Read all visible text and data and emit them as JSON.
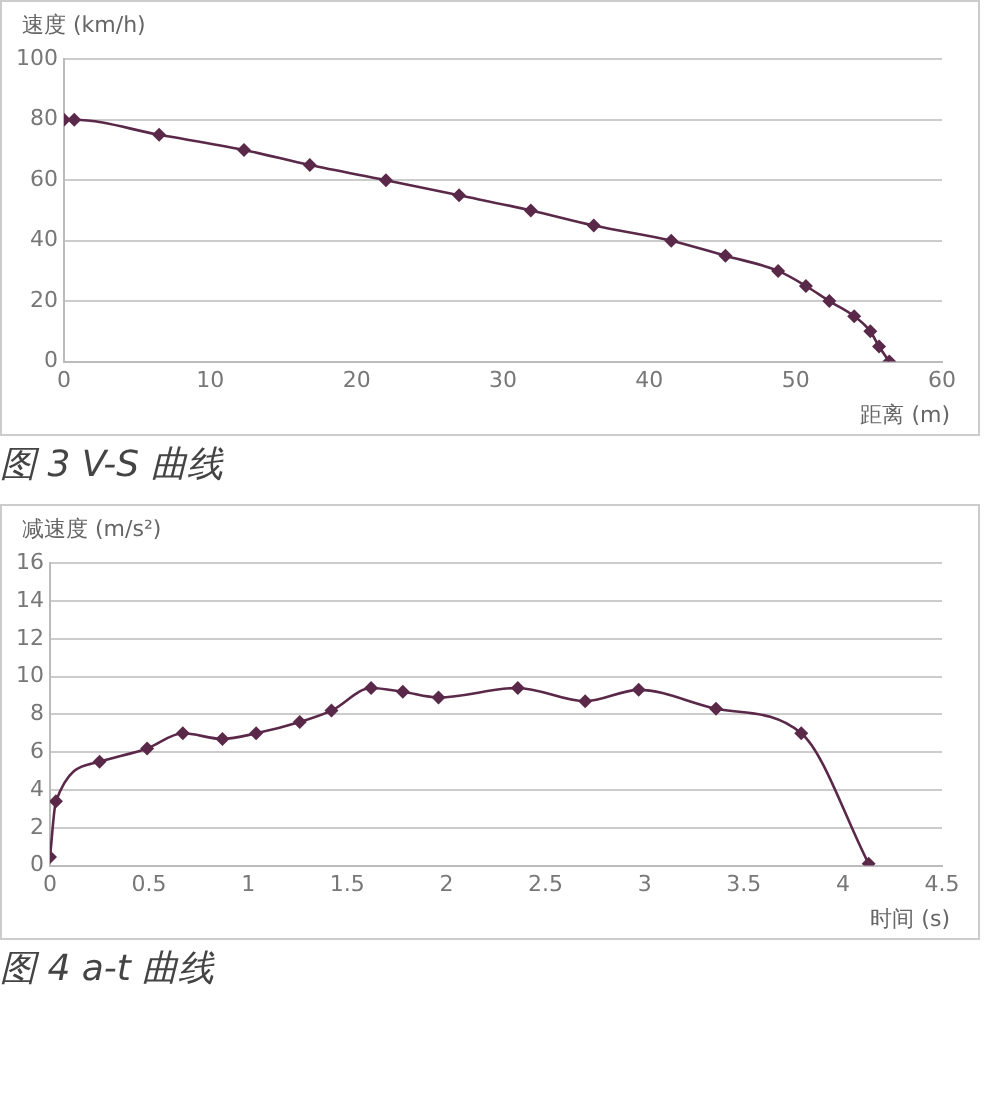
{
  "chart_data": [
    {
      "type": "line",
      "title": "图 3 V-S 曲线",
      "xlabel": "距离 (m)",
      "ylabel": "速度 (km/h)",
      "series": [
        {
          "color": "#5a2848",
          "x": [
            0,
            0.7,
            6.5,
            12.3,
            16.8,
            22,
            27,
            31.9,
            36.2,
            41.5,
            45.2,
            48.8,
            50.7,
            52.3,
            54,
            55.1,
            55.7,
            56.4
          ],
          "values": [
            80,
            80,
            75,
            70,
            65,
            60,
            55,
            50,
            45,
            40,
            35,
            30,
            25,
            20,
            15,
            10,
            5,
            0
          ]
        }
      ],
      "xlim": [
        0,
        60
      ],
      "xticks": [
        0,
        10,
        20,
        30,
        40,
        50,
        60
      ],
      "ylim": [
        0,
        100
      ],
      "yticks": [
        0,
        20,
        40,
        60,
        80,
        100
      ],
      "grid": "y",
      "marker": "diamond"
    },
    {
      "type": "line",
      "title": "图 4 a-t 曲线",
      "xlabel": "时间 (s)",
      "ylabel": "减速度 (m/s²)",
      "series": [
        {
          "color": "#5a2848",
          "x": [
            0,
            0.03,
            0.25,
            0.49,
            0.67,
            0.87,
            1.04,
            1.26,
            1.42,
            1.62,
            1.78,
            1.96,
            2.36,
            2.7,
            2.97,
            3.36,
            3.79,
            4.13
          ],
          "values": [
            0.45,
            3.4,
            5.5,
            6.2,
            7.0,
            6.7,
            7.0,
            7.6,
            8.2,
            9.4,
            9.2,
            8.9,
            9.4,
            8.7,
            9.3,
            8.3,
            7.0,
            0.1
          ]
        }
      ],
      "xlim": [
        0,
        4.5
      ],
      "xticks": [
        0,
        0.5,
        1,
        1.5,
        2,
        2.5,
        3,
        3.5,
        4,
        4.5
      ],
      "ylim": [
        0,
        16
      ],
      "yticks": [
        0,
        2,
        4,
        6,
        8,
        10,
        12,
        14,
        16
      ],
      "grid": "y",
      "marker": "diamond"
    }
  ]
}
